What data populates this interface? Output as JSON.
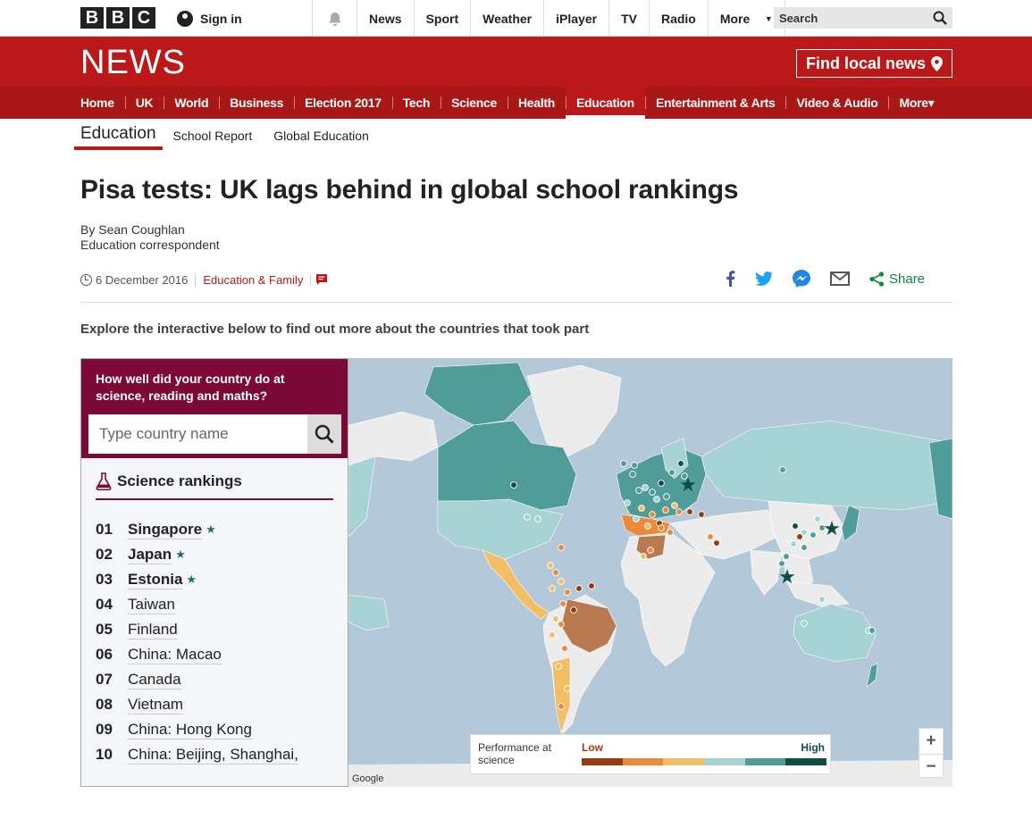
{
  "bbc_logo": [
    "B",
    "B",
    "C"
  ],
  "topbar": {
    "signin_label": "Sign in",
    "nav": [
      "News",
      "Sport",
      "Weather",
      "iPlayer",
      "TV",
      "Radio"
    ],
    "more_label": "More",
    "search_label": "Search"
  },
  "news": {
    "logo": "NEWS",
    "find_local": "Find local news",
    "nav": [
      "Home",
      "UK",
      "World",
      "Business",
      "Election 2017",
      "Tech",
      "Science",
      "Health",
      "Education",
      "Entertainment & Arts",
      "Video & Audio"
    ],
    "more_label": "More",
    "active": "Education"
  },
  "section": {
    "title": "Education",
    "links": [
      "School Report",
      "Global Education"
    ]
  },
  "article": {
    "headline": "Pisa tests: UK lags behind in global school rankings",
    "author": "By Sean Coughlan",
    "role": "Education correspondent",
    "date": "6 December 2016",
    "category": "Education & Family",
    "share_label": "Share",
    "intro": "Explore the interactive below to find out more about the countries that took part"
  },
  "interactive": {
    "question": "How well did your country do at science, reading and maths?",
    "search_placeholder": "Type country name",
    "rankings_title": "Science rankings",
    "rankings": [
      {
        "num": "01",
        "name": "Singapore",
        "star": true
      },
      {
        "num": "02",
        "name": "Japan",
        "star": true
      },
      {
        "num": "03",
        "name": "Estonia",
        "star": true
      },
      {
        "num": "04",
        "name": "Taiwan",
        "star": false
      },
      {
        "num": "05",
        "name": "Finland",
        "star": false
      },
      {
        "num": "06",
        "name": "China: Macao",
        "star": false
      },
      {
        "num": "07",
        "name": "Canada",
        "star": false
      },
      {
        "num": "08",
        "name": "Vietnam",
        "star": false
      },
      {
        "num": "09",
        "name": "China: Hong Kong",
        "star": false
      },
      {
        "num": "10",
        "name": "China: Beijing, Shanghai,",
        "star": false
      }
    ],
    "legend": {
      "title": "Performance at science",
      "low": "Low",
      "high": "High",
      "colors": [
        "#9a3b0f",
        "#ec8a3c",
        "#f2be66",
        "#a8d3d4",
        "#4f9c98",
        "#0f4c48"
      ]
    },
    "map_credit": "Google",
    "zoom_in": "+",
    "zoom_out": "−"
  },
  "colors": {
    "bbc_red": "#bb1919",
    "nav_red": "#a91717",
    "panel_maroon": "#7b0a36",
    "ocean": "#b3c8d8"
  }
}
